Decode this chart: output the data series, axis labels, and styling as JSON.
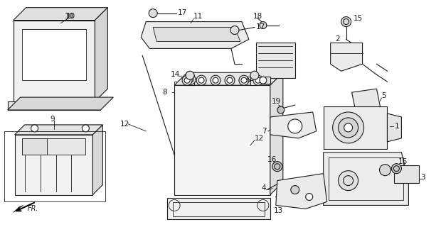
{
  "bg_color": "#ffffff",
  "line_color": "#1a1a1a",
  "label_color": "#1a1a1a",
  "fig_width": 6.2,
  "fig_height": 3.2,
  "dpi": 100
}
